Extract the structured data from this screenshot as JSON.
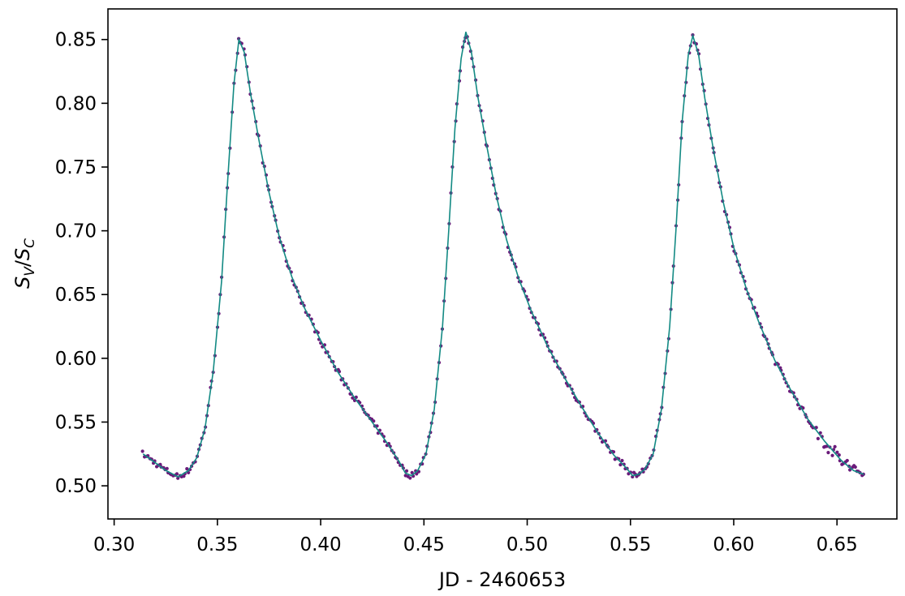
{
  "chart_data": {
    "type": "scatter",
    "title": "",
    "xlabel": "JD - 2460653",
    "ylabel": {
      "base1": "S",
      "sub1": "V",
      "sep": "/",
      "base2": "S",
      "sub2": "C"
    },
    "xlim": [
      0.297,
      0.679
    ],
    "ylim": [
      0.474,
      0.874
    ],
    "x_ticks": [
      0.3,
      0.35,
      0.4,
      0.45,
      0.5,
      0.55,
      0.6,
      0.65
    ],
    "x_tick_labels": [
      "0.30",
      "0.35",
      "0.40",
      "0.45",
      "0.50",
      "0.55",
      "0.60",
      "0.65"
    ],
    "y_ticks": [
      0.5,
      0.55,
      0.6,
      0.65,
      0.7,
      0.75,
      0.8,
      0.85
    ],
    "y_tick_labels": [
      "0.50",
      "0.55",
      "0.60",
      "0.65",
      "0.70",
      "0.75",
      "0.80",
      "0.85"
    ],
    "grid": false,
    "colors": {
      "points": "#6a1b7a",
      "model": "#138a84",
      "axes": "#000000"
    },
    "series": [
      {
        "kind": "points",
        "x_range": [
          0.314,
          0.663
        ],
        "period": 0.1097,
        "peaks": [
          0.3604,
          0.4703,
          0.5802
        ],
        "minima": [
          0.331,
          0.441,
          0.551,
          0.66
        ],
        "description_values": {
          "peak_y": [
            0.856,
            0.857,
            0.853
          ],
          "min_y": [
            0.505,
            0.508,
            0.508,
            0.495
          ]
        }
      },
      {
        "kind": "model_curve",
        "x": [
          0.314,
          0.32,
          0.325,
          0.331,
          0.336,
          0.34,
          0.344,
          0.348,
          0.352,
          0.355,
          0.358,
          0.3604,
          0.363,
          0.366,
          0.37,
          0.375,
          0.38,
          0.386,
          0.392,
          0.4,
          0.408,
          0.416,
          0.424,
          0.432,
          0.438,
          0.441,
          0.444,
          0.447,
          0.451,
          0.455,
          0.459,
          0.462,
          0.465,
          0.468,
          0.4703,
          0.473,
          0.476,
          0.48,
          0.485,
          0.49,
          0.496,
          0.502,
          0.51,
          0.518,
          0.526,
          0.534,
          0.542,
          0.548,
          0.551,
          0.554,
          0.557,
          0.561,
          0.565,
          0.569,
          0.572,
          0.575,
          0.578,
          0.5802,
          0.583,
          0.586,
          0.59,
          0.595,
          0.6,
          0.606,
          0.612,
          0.62,
          0.628,
          0.636,
          0.644,
          0.652,
          0.658,
          0.663
        ],
        "y": [
          0.525,
          0.518,
          0.512,
          0.507,
          0.512,
          0.522,
          0.545,
          0.59,
          0.66,
          0.74,
          0.815,
          0.85,
          0.84,
          0.808,
          0.772,
          0.73,
          0.695,
          0.664,
          0.64,
          0.614,
          0.59,
          0.57,
          0.552,
          0.534,
          0.519,
          0.51,
          0.508,
          0.512,
          0.525,
          0.56,
          0.625,
          0.7,
          0.78,
          0.835,
          0.856,
          0.84,
          0.806,
          0.77,
          0.728,
          0.693,
          0.662,
          0.637,
          0.609,
          0.585,
          0.563,
          0.542,
          0.524,
          0.514,
          0.508,
          0.509,
          0.513,
          0.525,
          0.56,
          0.625,
          0.7,
          0.785,
          0.838,
          0.853,
          0.838,
          0.804,
          0.765,
          0.722,
          0.687,
          0.655,
          0.629,
          0.598,
          0.574,
          0.552,
          0.535,
          0.52,
          0.512,
          0.509
        ]
      }
    ]
  }
}
